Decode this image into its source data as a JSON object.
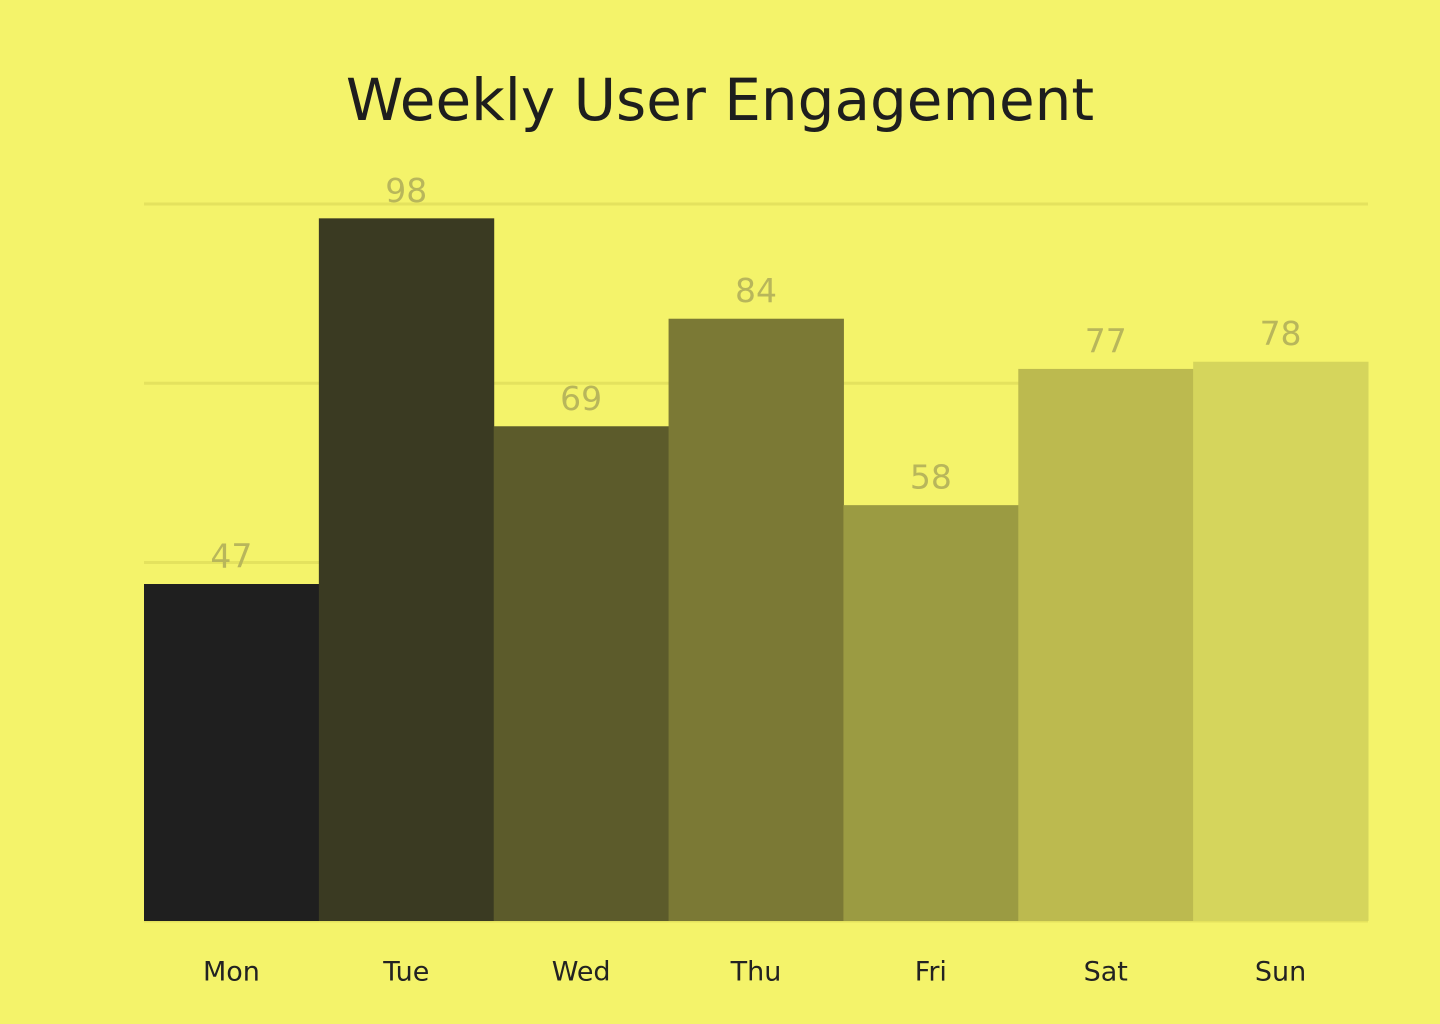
{
  "chart_data": {
    "type": "bar",
    "title": "Weekly User Engagement",
    "categories": [
      "Mon",
      "Tue",
      "Wed",
      "Thu",
      "Fri",
      "Sat",
      "Sun"
    ],
    "values": [
      47,
      98,
      69,
      84,
      58,
      77,
      78
    ],
    "colors": [
      "#1f1f1f",
      "#3a3a22",
      "#5c5b2b",
      "#7b7935",
      "#9b9b42",
      "#bcba4f",
      "#d5d55c"
    ],
    "ylim": [
      0,
      100
    ],
    "yticks": [
      0,
      25,
      50,
      75,
      100
    ],
    "grid": true
  }
}
